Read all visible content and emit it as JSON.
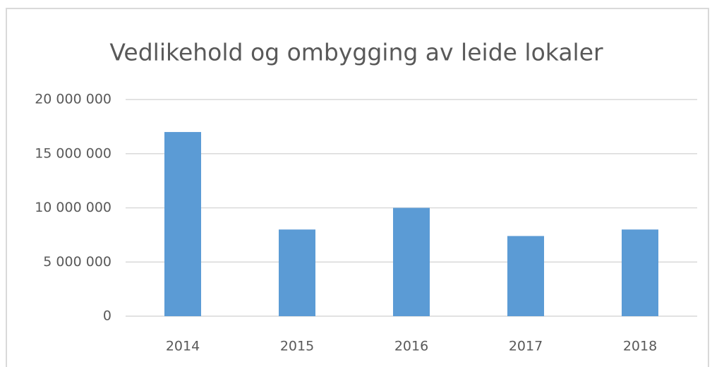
{
  "chart_data": {
    "type": "bar",
    "title": "Vedlikehold og ombygging av leide lokaler",
    "categories": [
      "2014",
      "2015",
      "2016",
      "2017",
      "2018"
    ],
    "values": [
      17000000,
      8000000,
      10000000,
      7400000,
      8000000
    ],
    "color": "#5b9bd5",
    "ylim": [
      0,
      20000000
    ],
    "yticks": [
      0,
      {
        "value": 5000000,
        "label": "5 000 000"
      },
      {
        "value": 10000000,
        "label": "10 000 000"
      },
      {
        "value": 15000000,
        "label": "15 000 000"
      },
      {
        "value": 20000000,
        "label": "20 000 000"
      }
    ],
    "grid": true
  }
}
